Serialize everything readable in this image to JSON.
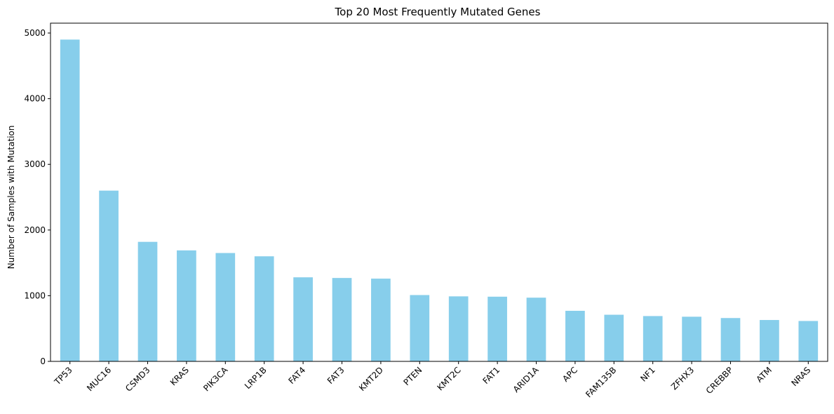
{
  "chart_data": {
    "type": "bar",
    "title": "Top 20 Most Frequently Mutated Genes",
    "xlabel": "",
    "ylabel": "Number of Samples with Mutation",
    "categories": [
      "TP53",
      "MUC16",
      "CSMD3",
      "KRAS",
      "PIK3CA",
      "LRP1B",
      "FAT4",
      "FAT3",
      "KMT2D",
      "PTEN",
      "KMT2C",
      "FAT1",
      "ARID1A",
      "APC",
      "FAM135B",
      "NF1",
      "ZFHX3",
      "CREBBP",
      "ATM",
      "NRAS"
    ],
    "values": [
      4900,
      2600,
      1820,
      1690,
      1650,
      1600,
      1280,
      1270,
      1260,
      1010,
      990,
      985,
      970,
      770,
      710,
      690,
      680,
      660,
      630,
      615
    ],
    "ylim": [
      0,
      5150
    ],
    "yticks": [
      0,
      1000,
      2000,
      3000,
      4000,
      5000
    ],
    "bar_color": "#87CEEB",
    "grid": false,
    "legend": "none"
  }
}
